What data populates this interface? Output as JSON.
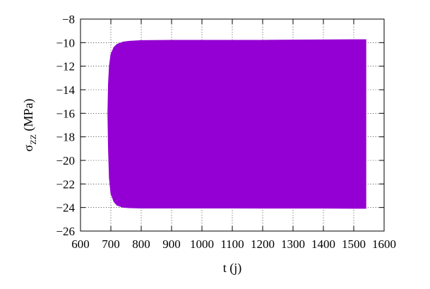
{
  "chart_data": {
    "type": "area",
    "title": "",
    "xlabel": "t (j)",
    "ylabel": {
      "symbol": "σ",
      "subscript": "ZZ",
      "unit": " (MPa)"
    },
    "xlim": [
      600,
      1600
    ],
    "ylim": [
      -26,
      -8
    ],
    "xticks": [
      600,
      700,
      800,
      900,
      1000,
      1100,
      1200,
      1300,
      1400,
      1500,
      1600
    ],
    "yticks": [
      -26,
      -24,
      -22,
      -20,
      -18,
      -16,
      -14,
      -12,
      -10,
      -8
    ],
    "grid": true,
    "legend": "none",
    "series": [
      {
        "color": "#9400d3",
        "x": [
          690,
          692,
          695,
          700,
          710,
          720,
          740,
          760,
          800,
          900,
          1000,
          1100,
          1200,
          1300,
          1400,
          1500,
          1540
        ],
        "upper": [
          -16.0,
          -13.5,
          -12.0,
          -11.0,
          -10.4,
          -10.15,
          -9.95,
          -9.88,
          -9.82,
          -9.8,
          -9.8,
          -9.8,
          -9.8,
          -9.78,
          -9.76,
          -9.75,
          -9.75
        ],
        "lower": [
          -16.0,
          -19.0,
          -21.5,
          -22.8,
          -23.5,
          -23.8,
          -23.98,
          -24.02,
          -24.05,
          -24.05,
          -24.05,
          -24.05,
          -24.06,
          -24.06,
          -24.06,
          -24.07,
          -24.07
        ]
      }
    ]
  }
}
